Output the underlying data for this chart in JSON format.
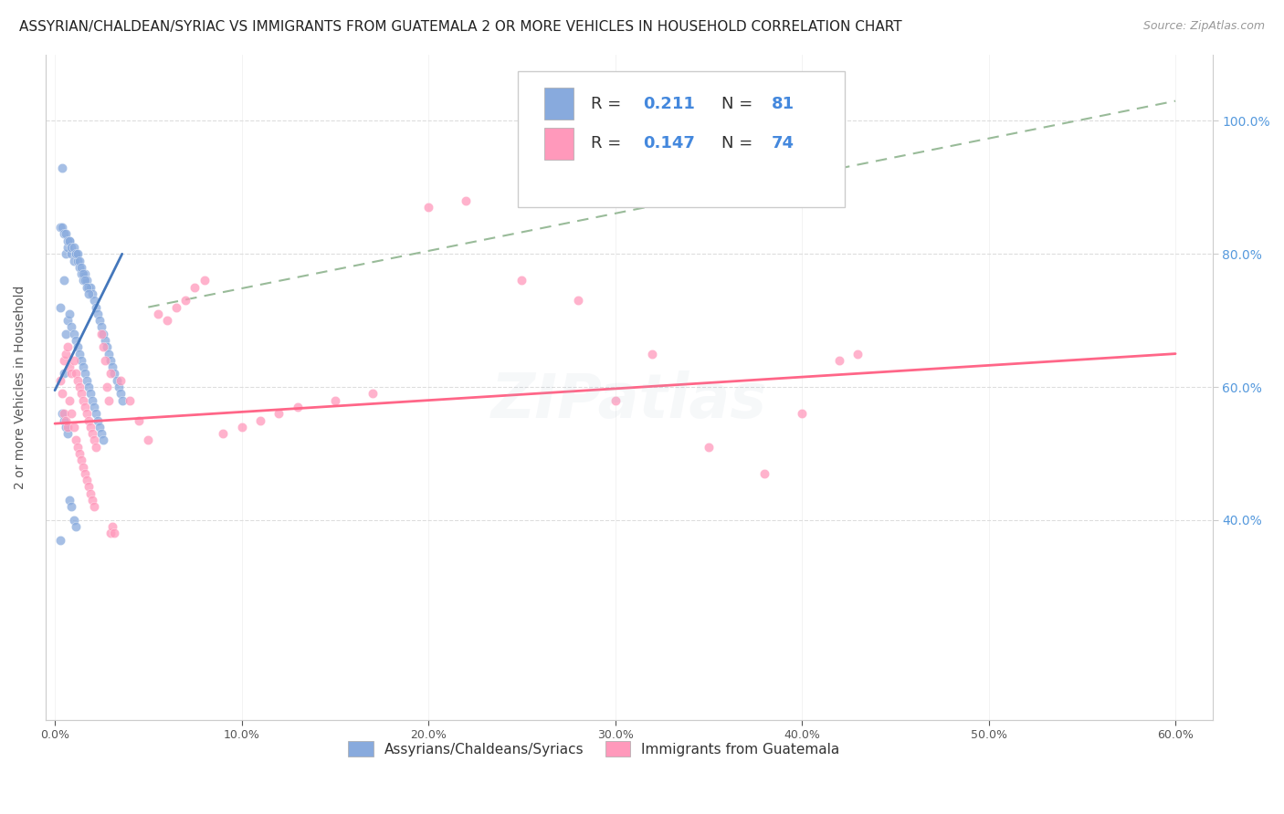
{
  "title": "ASSYRIAN/CHALDEAN/SYRIAC VS IMMIGRANTS FROM GUATEMALA 2 OR MORE VEHICLES IN HOUSEHOLD CORRELATION CHART",
  "source": "Source: ZipAtlas.com",
  "ylabel": "2 or more Vehicles in Household",
  "xlim": [
    0.0,
    0.6
  ],
  "ylim": [
    0.1,
    1.1
  ],
  "xticks": [
    0.0,
    0.1,
    0.2,
    0.3,
    0.4,
    0.5,
    0.6
  ],
  "yticks_right": [
    0.4,
    0.6,
    0.8,
    1.0
  ],
  "ytick_labels_right": [
    "40.0%",
    "60.0%",
    "80.0%",
    "100.0%"
  ],
  "xtick_labels": [
    "0.0%",
    "10.0%",
    "20.0%",
    "30.0%",
    "40.0%",
    "50.0%",
    "60.0%"
  ],
  "color_blue": "#88AADD",
  "color_pink": "#FF99BB",
  "color_blue_line": "#4477BB",
  "color_pink_line": "#FF6688",
  "color_dashed": "#99BB99",
  "watermark": "ZIPatlas",
  "legend_label1": "Assyrians/Chaldeans/Syriacs",
  "legend_label2": "Immigrants from Guatemala",
  "title_fontsize": 11,
  "source_fontsize": 9,
  "axis_label_fontsize": 10,
  "tick_fontsize": 9,
  "watermark_fontsize": 48,
  "watermark_alpha": 0.1,
  "background_color": "#FFFFFF",
  "blue_x": [
    0.003,
    0.004,
    0.005,
    0.005,
    0.006,
    0.006,
    0.007,
    0.007,
    0.008,
    0.008,
    0.009,
    0.009,
    0.01,
    0.01,
    0.011,
    0.011,
    0.012,
    0.012,
    0.013,
    0.013,
    0.014,
    0.014,
    0.015,
    0.015,
    0.016,
    0.016,
    0.017,
    0.017,
    0.018,
    0.018,
    0.019,
    0.019,
    0.02,
    0.02,
    0.021,
    0.021,
    0.022,
    0.022,
    0.023,
    0.023,
    0.024,
    0.024,
    0.025,
    0.025,
    0.026,
    0.026,
    0.027,
    0.028,
    0.029,
    0.03,
    0.031,
    0.032,
    0.033,
    0.034,
    0.035,
    0.036,
    0.003,
    0.004,
    0.005,
    0.006,
    0.007,
    0.008,
    0.009,
    0.01,
    0.011,
    0.012,
    0.013,
    0.014,
    0.015,
    0.016,
    0.017,
    0.018,
    0.004,
    0.005,
    0.006,
    0.007,
    0.008,
    0.009,
    0.01,
    0.011,
    0.003
  ],
  "blue_y": [
    0.72,
    0.93,
    0.76,
    0.62,
    0.8,
    0.68,
    0.81,
    0.7,
    0.82,
    0.71,
    0.8,
    0.69,
    0.79,
    0.68,
    0.8,
    0.67,
    0.79,
    0.66,
    0.78,
    0.65,
    0.77,
    0.64,
    0.76,
    0.63,
    0.77,
    0.62,
    0.76,
    0.61,
    0.75,
    0.6,
    0.75,
    0.59,
    0.74,
    0.58,
    0.73,
    0.57,
    0.72,
    0.56,
    0.71,
    0.55,
    0.7,
    0.54,
    0.69,
    0.53,
    0.68,
    0.52,
    0.67,
    0.66,
    0.65,
    0.64,
    0.63,
    0.62,
    0.61,
    0.6,
    0.59,
    0.58,
    0.84,
    0.84,
    0.83,
    0.83,
    0.82,
    0.82,
    0.81,
    0.81,
    0.8,
    0.8,
    0.79,
    0.78,
    0.77,
    0.76,
    0.75,
    0.74,
    0.56,
    0.55,
    0.54,
    0.53,
    0.43,
    0.42,
    0.4,
    0.39,
    0.37
  ],
  "pink_x": [
    0.003,
    0.004,
    0.005,
    0.005,
    0.006,
    0.006,
    0.007,
    0.007,
    0.008,
    0.008,
    0.009,
    0.009,
    0.01,
    0.01,
    0.011,
    0.011,
    0.012,
    0.012,
    0.013,
    0.013,
    0.014,
    0.014,
    0.015,
    0.015,
    0.016,
    0.016,
    0.017,
    0.017,
    0.018,
    0.018,
    0.019,
    0.019,
    0.02,
    0.02,
    0.021,
    0.021,
    0.022,
    0.03,
    0.035,
    0.04,
    0.045,
    0.05,
    0.055,
    0.06,
    0.065,
    0.07,
    0.075,
    0.08,
    0.09,
    0.1,
    0.11,
    0.12,
    0.13,
    0.15,
    0.17,
    0.2,
    0.22,
    0.25,
    0.28,
    0.3,
    0.32,
    0.35,
    0.38,
    0.4,
    0.42,
    0.43,
    0.025,
    0.026,
    0.027,
    0.028,
    0.029,
    0.03,
    0.031,
    0.032
  ],
  "pink_y": [
    0.61,
    0.59,
    0.64,
    0.56,
    0.65,
    0.55,
    0.66,
    0.54,
    0.63,
    0.58,
    0.62,
    0.56,
    0.64,
    0.54,
    0.62,
    0.52,
    0.61,
    0.51,
    0.6,
    0.5,
    0.59,
    0.49,
    0.58,
    0.48,
    0.57,
    0.47,
    0.56,
    0.46,
    0.55,
    0.45,
    0.54,
    0.44,
    0.53,
    0.43,
    0.52,
    0.42,
    0.51,
    0.62,
    0.61,
    0.58,
    0.55,
    0.52,
    0.71,
    0.7,
    0.72,
    0.73,
    0.75,
    0.76,
    0.53,
    0.54,
    0.55,
    0.56,
    0.57,
    0.58,
    0.59,
    0.87,
    0.88,
    0.76,
    0.73,
    0.58,
    0.65,
    0.51,
    0.47,
    0.56,
    0.64,
    0.65,
    0.68,
    0.66,
    0.64,
    0.6,
    0.58,
    0.38,
    0.39,
    0.38
  ],
  "blue_line_x0": 0.0,
  "blue_line_x1": 0.036,
  "blue_line_y0": 0.595,
  "blue_line_y1": 0.8,
  "pink_line_x0": 0.0,
  "pink_line_x1": 0.6,
  "pink_line_y0": 0.545,
  "pink_line_y1": 0.65,
  "dash_line_x0": 0.05,
  "dash_line_x1": 0.6,
  "dash_line_y0": 0.72,
  "dash_line_y1": 1.03
}
